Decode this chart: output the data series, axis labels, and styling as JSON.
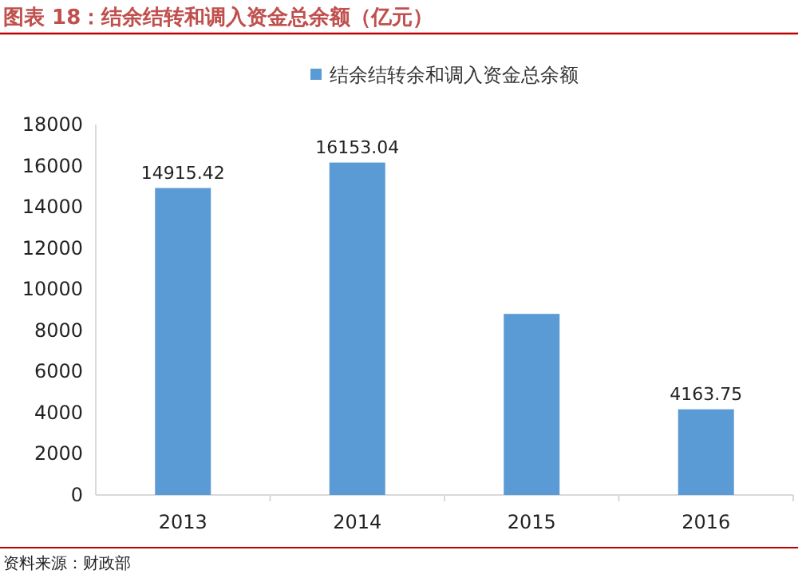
{
  "chart_data": {
    "type": "bar",
    "title": "图表 18：结余结转和调入资金总余额（亿元）",
    "categories": [
      "2013",
      "2014",
      "2015",
      "2016"
    ],
    "series": [
      {
        "name": "结余结转余和调入资金总余额",
        "color": "#5b9bd5",
        "values": [
          14915.42,
          16153.04,
          8800,
          4163.75
        ],
        "value_labels": [
          "14915.42",
          "16153.04",
          null,
          "4163.75"
        ]
      }
    ],
    "ylim": [
      0,
      18000
    ],
    "yticks": [
      0,
      2000,
      4000,
      6000,
      8000,
      10000,
      12000,
      14000,
      16000,
      18000
    ],
    "legend": "top",
    "grid": false,
    "annotations": [
      "资料来源：财政部"
    ]
  }
}
